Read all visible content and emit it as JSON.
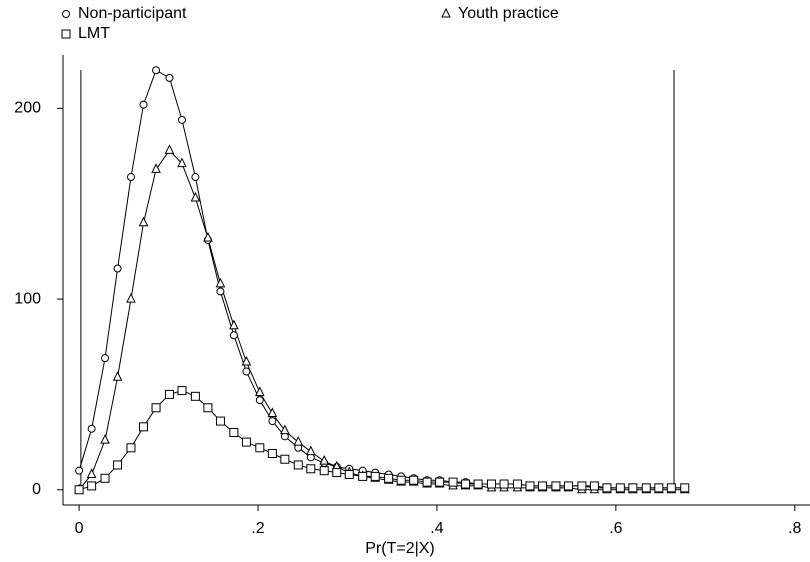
{
  "chart_data": {
    "type": "line",
    "x_label": "Pr(T=2|X)",
    "x": [
      0,
      0.014,
      0.029,
      0.043,
      0.058,
      0.072,
      0.086,
      0.101,
      0.115,
      0.13,
      0.144,
      0.158,
      0.173,
      0.187,
      0.202,
      0.216,
      0.23,
      0.245,
      0.259,
      0.274,
      0.288,
      0.302,
      0.317,
      0.331,
      0.346,
      0.36,
      0.374,
      0.389,
      0.403,
      0.418,
      0.432,
      0.446,
      0.461,
      0.475,
      0.49,
      0.504,
      0.518,
      0.533,
      0.547,
      0.562,
      0.576,
      0.59,
      0.605,
      0.619,
      0.634,
      0.648,
      0.662,
      0.677
    ],
    "series": [
      {
        "name": "Non-participant",
        "color": "#000000",
        "marker": "circle",
        "values": [
          10,
          32,
          69,
          116,
          164,
          202,
          220,
          216,
          194,
          164,
          131,
          104,
          81,
          62,
          47,
          36,
          28,
          22,
          17,
          14,
          12,
          11,
          10,
          9,
          8,
          7,
          6,
          5,
          5,
          4,
          4,
          3,
          3,
          3,
          3,
          2,
          2,
          2,
          2,
          2,
          1,
          1,
          1,
          1,
          1,
          1,
          1,
          1
        ]
      },
      {
        "name": "Youth practice",
        "color": "#000000",
        "marker": "triangle",
        "values": [
          0,
          8,
          26,
          59,
          100,
          140,
          168,
          178,
          171,
          153,
          132,
          108,
          86,
          67,
          51,
          40,
          31,
          25,
          20,
          15,
          12,
          9,
          7,
          6,
          5,
          4,
          4,
          3,
          3,
          2,
          2,
          2,
          1,
          1,
          1,
          1,
          1,
          1,
          1,
          0,
          0,
          0,
          0,
          0,
          0,
          0,
          0,
          0
        ]
      },
      {
        "name": "LMT",
        "color": "#000000",
        "marker": "square",
        "values": [
          0,
          2,
          6,
          13,
          22,
          33,
          43,
          50,
          52,
          49,
          43,
          36,
          30,
          25,
          22,
          19,
          16,
          13,
          11,
          10,
          9,
          8,
          7,
          7,
          6,
          5,
          5,
          4,
          4,
          4,
          3,
          3,
          3,
          3,
          3,
          2,
          2,
          2,
          2,
          2,
          2,
          1,
          1,
          1,
          1,
          1,
          1,
          1
        ]
      }
    ],
    "reference_lines": [
      0.002,
      0.665
    ],
    "xlim": [
      -0.018,
      0.817
    ],
    "ylim": [
      -8,
      228
    ],
    "xticks": [
      0,
      {
        "value": 0.2,
        "label": ".2"
      },
      {
        "value": 0.4,
        "label": ".4"
      },
      {
        "value": 0.6,
        "label": ".6"
      },
      {
        "value": 0.8,
        "label": ".8"
      }
    ],
    "yticks": [
      0,
      100,
      200
    ],
    "grid": false
  }
}
